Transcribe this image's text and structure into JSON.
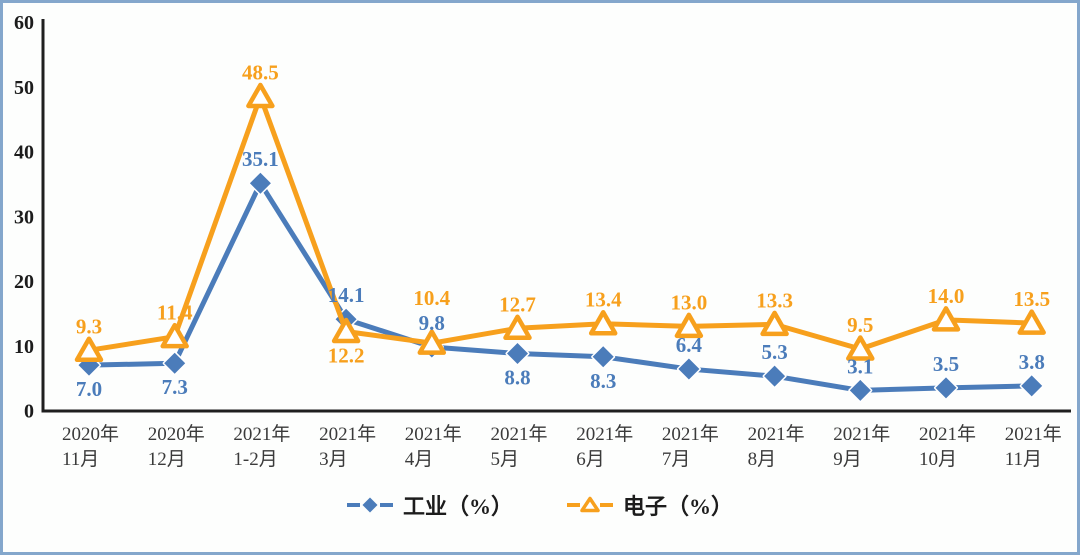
{
  "frame": {
    "border_color": "#84a7cc",
    "background": "#fdfefd"
  },
  "chart_data": {
    "type": "line",
    "categories": [
      [
        "2020年",
        "11月"
      ],
      [
        "2020年",
        "12月"
      ],
      [
        "2021年",
        "1-2月"
      ],
      [
        "2021年",
        "3月"
      ],
      [
        "2021年",
        "4月"
      ],
      [
        "2021年",
        "5月"
      ],
      [
        "2021年",
        "6月"
      ],
      [
        "2021年",
        "7月"
      ],
      [
        "2021年",
        "8月"
      ],
      [
        "2021年",
        "9月"
      ],
      [
        "2021年",
        "10月"
      ],
      [
        "2021年",
        "11月"
      ]
    ],
    "series": [
      {
        "name": "工业（%）",
        "color": "#4b7cba",
        "marker": "diamond",
        "values": [
          7.0,
          7.3,
          35.1,
          14.1,
          9.8,
          8.8,
          8.3,
          6.4,
          5.3,
          3.1,
          3.5,
          3.8
        ],
        "label_positions": [
          "below",
          "below",
          "above",
          "above",
          "above",
          "below",
          "below",
          "above",
          "above",
          "above",
          "above",
          "above"
        ]
      },
      {
        "name": "电子（%）",
        "color": "#f7a01d",
        "marker": "triangle",
        "values": [
          9.3,
          11.4,
          48.5,
          12.2,
          10.4,
          12.7,
          13.4,
          13.0,
          13.3,
          9.5,
          14.0,
          13.5
        ],
        "label_positions": [
          "above",
          "above",
          "above",
          "below",
          "above-high",
          "above",
          "above",
          "above",
          "above",
          "above",
          "above",
          "above"
        ]
      }
    ],
    "title": "",
    "xlabel": "",
    "ylabel": "",
    "ylim": [
      0,
      60
    ],
    "yticks": [
      0,
      10,
      20,
      30,
      40,
      50,
      60
    ],
    "grid": false,
    "legend_position": "bottom",
    "axis_color": "#1f1f1f",
    "value_decimals": 1
  }
}
